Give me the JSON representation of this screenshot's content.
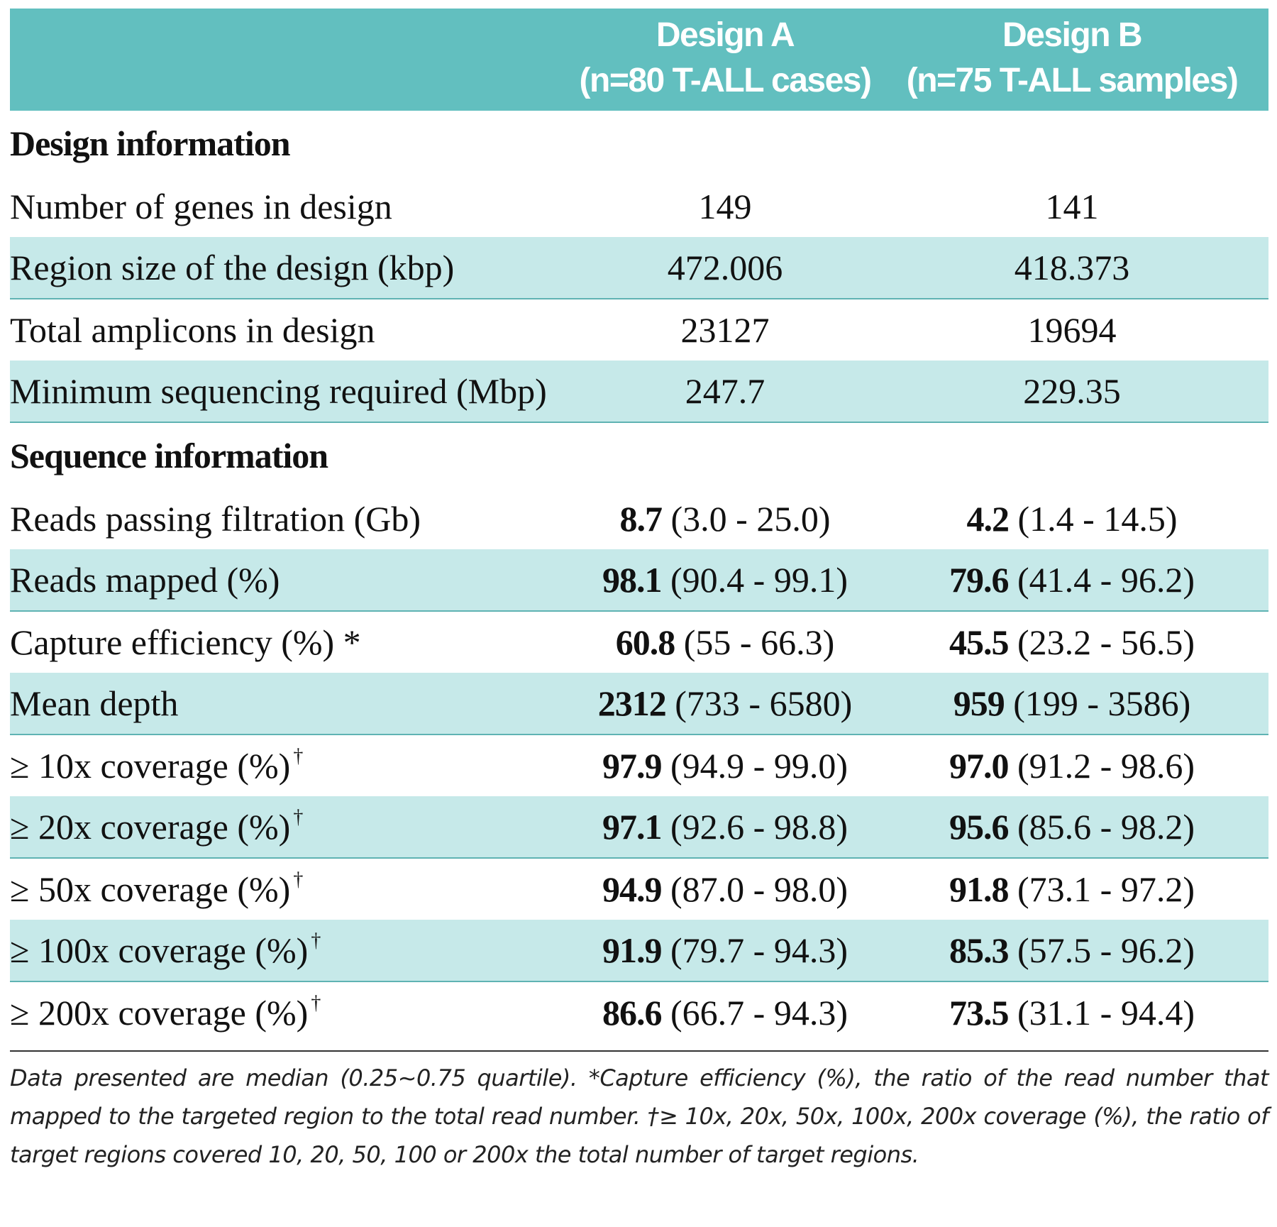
{
  "header": {
    "col_a_line1": "Design A",
    "col_a_line2": "(n=80 T-ALL cases)",
    "col_b_line1": "Design B",
    "col_b_line2": "(n=75 T-ALL samples)"
  },
  "design_info": {
    "title": "Design information",
    "rows": [
      {
        "label": "Number of genes in design",
        "a": "149",
        "b": "141"
      },
      {
        "label": "Region size of the design (kbp)",
        "a": "472.006",
        "b": "418.373"
      },
      {
        "label": "Total amplicons in design",
        "a": "23127",
        "b": "19694"
      },
      {
        "label": "Minimum sequencing required (Mbp)",
        "a": "247.7",
        "b": "229.35"
      }
    ]
  },
  "sequence_info": {
    "title": "Sequence information",
    "rows": [
      {
        "label": "Reads passing filtration (Gb)",
        "mark": "",
        "a_med": "8.7",
        "a_range": "(3.0 - 25.0)",
        "b_med": "4.2",
        "b_range": "(1.4 - 14.5)"
      },
      {
        "label": "Reads mapped (%)",
        "mark": "",
        "a_med": "98.1",
        "a_range": "(90.4 - 99.1)",
        "b_med": "79.6",
        "b_range": "(41.4 - 96.2)"
      },
      {
        "label": "Capture efficiency (%) *",
        "mark": "",
        "a_med": "60.8",
        "a_range": "(55 - 66.3)",
        "b_med": "45.5",
        "b_range": "(23.2 - 56.5)"
      },
      {
        "label": "Mean depth",
        "mark": "",
        "a_med": "2312",
        "a_range": "(733 - 6580)",
        "b_med": "959",
        "b_range": "(199 - 3586)"
      },
      {
        "label": "≥ 10x coverage (%)",
        "mark": "†",
        "a_med": "97.9",
        "a_range": "(94.9 - 99.0)",
        "b_med": "97.0",
        "b_range": "(91.2 - 98.6)"
      },
      {
        "label": "≥ 20x coverage (%)",
        "mark": "†",
        "a_med": "97.1",
        "a_range": "(92.6 - 98.8)",
        "b_med": "95.6",
        "b_range": "(85.6 - 98.2)"
      },
      {
        "label": "≥ 50x coverage (%)",
        "mark": "†",
        "a_med": "94.9",
        "a_range": "(87.0 - 98.0)",
        "b_med": "91.8",
        "b_range": "(73.1 - 97.2)"
      },
      {
        "label": "≥ 100x coverage (%)",
        "mark": "†",
        "a_med": "91.9",
        "a_range": "(79.7 - 94.3)",
        "b_med": "85.3",
        "b_range": "(57.5 - 96.2)"
      },
      {
        "label": "≥ 200x coverage (%)",
        "mark": "†",
        "a_med": "86.6",
        "a_range": "(66.7 - 94.3)",
        "b_med": "73.5",
        "b_range": "(31.1 - 94.4)"
      }
    ]
  },
  "footnote": "Data presented are median (0.25~0.75 quartile).  *Capture efficiency (%), the ratio of the read number that mapped to the targeted region to the total read number. †≥ 10x, 20x, 50x, 100x, 200x coverage (%), the ratio of target regions covered 10, 20, 50, 100 or 200x the total number of target regions."
}
